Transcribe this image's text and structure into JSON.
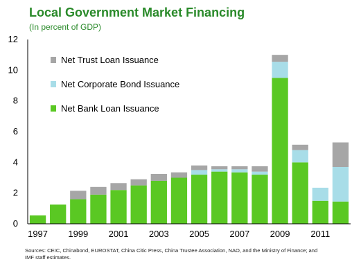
{
  "title": "Local Government Market Financing",
  "subtitle": "(In percent of GDP)",
  "source": {
    "line1": "Sources: CEIC, Chinabond, EUROSTAT, China Citic Press, China Trustee Association, NAO, and the Ministry of Finance; and",
    "line2": "IMF staff estimates."
  },
  "colors": {
    "bank": "#5ac823",
    "bond": "#a8dde8",
    "trust": "#a6a6a6"
  },
  "chart_data": {
    "type": "bar",
    "stacked": true,
    "title": "Local Government Market Financing",
    "subtitle": "(In percent of GDP)",
    "ylim": [
      0,
      12
    ],
    "yticks": [
      "0",
      "2",
      "4",
      "6",
      "8",
      "10",
      "12"
    ],
    "x_tick_labels": [
      "1997",
      "1999",
      "2001",
      "2003",
      "2005",
      "2007",
      "2009",
      "2011"
    ],
    "categories": [
      "1997",
      "1998",
      "1999",
      "2000",
      "2001",
      "2002",
      "2003",
      "2004",
      "2005",
      "2006",
      "2007",
      "2008",
      "2009",
      "2010",
      "2011",
      "2012"
    ],
    "legend_position": "top-left",
    "series": [
      {
        "name": "Net Bank Loan Issuance",
        "color_key": "bank",
        "values": [
          0.55,
          1.25,
          1.6,
          1.9,
          2.2,
          2.5,
          2.8,
          3.0,
          3.2,
          3.4,
          3.35,
          3.2,
          9.5,
          4.0,
          1.5,
          1.45
        ]
      },
      {
        "name": "Net Corporate Bond Issuance",
        "color_key": "bond",
        "values": [
          0,
          0,
          0,
          0,
          0,
          0,
          0,
          0,
          0.3,
          0.15,
          0.2,
          0.2,
          1.05,
          0.8,
          0.85,
          2.25
        ]
      },
      {
        "name": "Net Trust Loan Issuance",
        "color_key": "trust",
        "values": [
          0,
          0,
          0.55,
          0.5,
          0.45,
          0.4,
          0.45,
          0.35,
          0.3,
          0.2,
          0.2,
          0.35,
          0.45,
          0.35,
          0,
          1.6
        ]
      }
    ],
    "legend_order": [
      "Net Trust Loan Issuance",
      "Net Corporate Bond Issuance",
      "Net Bank Loan Issuance"
    ]
  }
}
